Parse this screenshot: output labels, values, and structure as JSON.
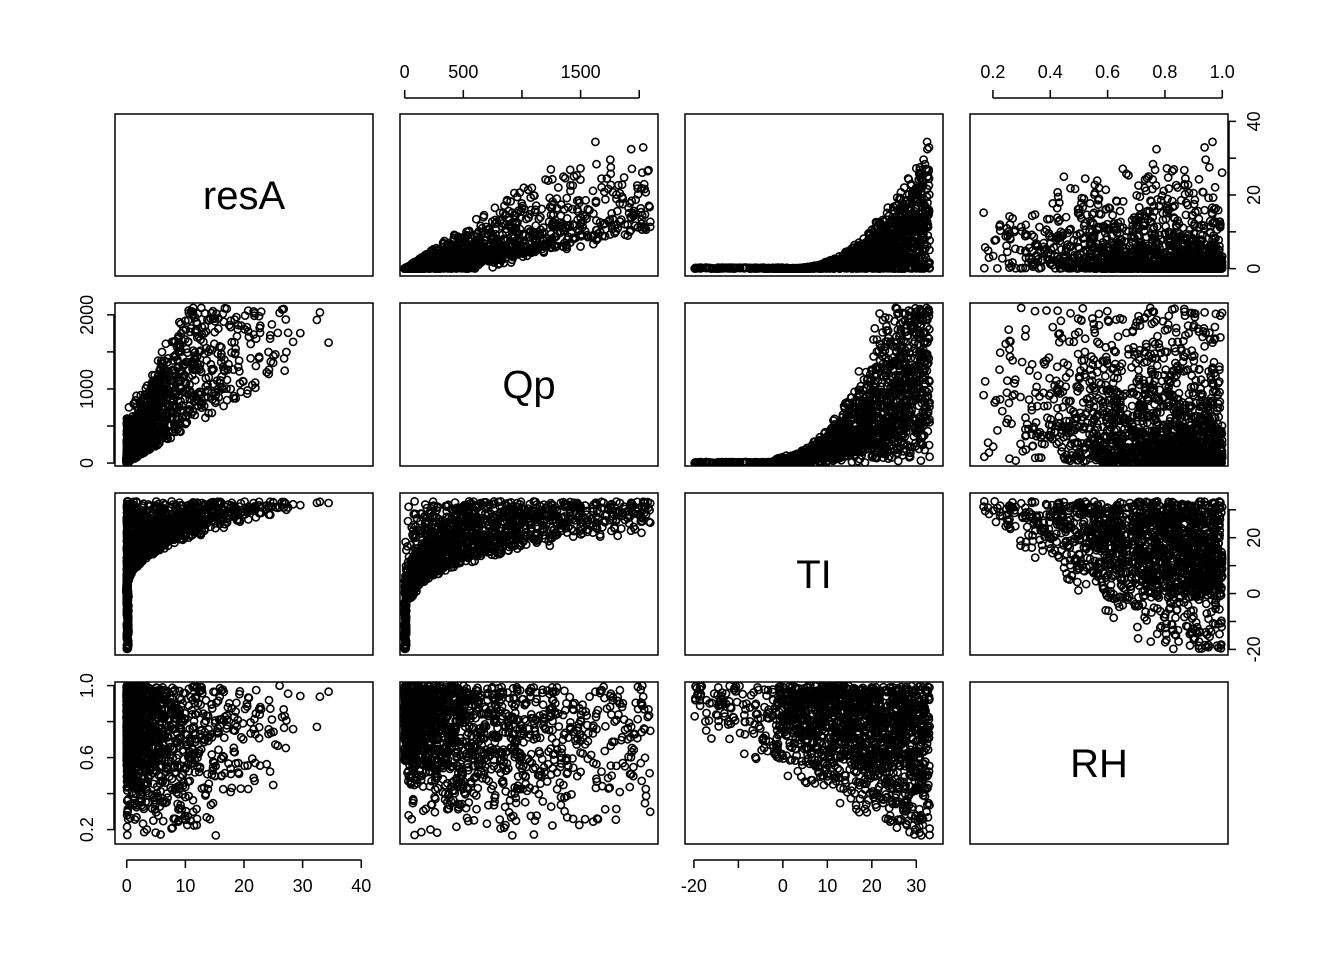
{
  "chart_data": {
    "type": "scatter",
    "title": "",
    "variables": [
      {
        "name": "resA",
        "range": [
          -2,
          42
        ],
        "ticks": [
          0,
          10,
          20,
          30,
          40
        ],
        "tick_labels": [
          "0",
          "10",
          "20",
          "30",
          "40"
        ]
      },
      {
        "name": "Qp",
        "range": [
          -40,
          2160
        ],
        "ticks": [
          0,
          500,
          1000,
          1500,
          2000
        ],
        "tick_labels": [
          "0",
          "500",
          "",
          "1500",
          ""
        ]
      },
      {
        "name": "TI",
        "range": [
          -22,
          36
        ],
        "ticks": [
          -20,
          -10,
          0,
          10,
          20,
          30
        ],
        "tick_labels": [
          "-20",
          "",
          "0",
          "10",
          "20",
          "30"
        ]
      },
      {
        "name": "RH",
        "range": [
          0.12,
          1.02
        ],
        "ticks": [
          0.2,
          0.4,
          0.6,
          0.8,
          1.0
        ],
        "tick_labels": [
          "0.2",
          "0.4",
          "0.6",
          "0.8",
          "1.0"
        ]
      }
    ],
    "left_axis_ticks": {
      "Qp": {
        "ticks": [
          0,
          500,
          1000,
          1500,
          2000
        ],
        "tick_labels": [
          "0",
          "",
          "1000",
          "",
          "2000"
        ]
      },
      "RH": {
        "ticks": [
          0.2,
          0.4,
          0.6,
          0.8,
          1.0
        ],
        "tick_labels": [
          "0.2",
          "",
          "0.6",
          "",
          "1.0"
        ]
      }
    },
    "right_axis_ticks": {
      "resA": {
        "ticks": [
          0,
          10,
          20,
          30,
          40
        ],
        "tick_labels": [
          "0",
          "",
          "20",
          "",
          "40"
        ]
      },
      "TI": {
        "ticks": [
          -20,
          -10,
          0,
          10,
          20,
          30
        ],
        "tick_labels": [
          "-20",
          "",
          "0",
          "",
          "20",
          ""
        ]
      }
    },
    "marker": "open-circle",
    "color": "#000000",
    "n_points_per_panel": 1600,
    "relationships": {
      "Qp_vs_resA": "Qp rises with resA; lower boundary roughly linear from (0,0) to (40,1800); upper boundary near 2000 above resA 20",
      "resA_vs_TI": "resA near 0 for TI below about 0, increasing steeply to about 40 at TI 33",
      "TI_vs_RH": "TI ranges -20 to 33; upper bound increases with RH",
      "RH_vs_TI": "RH between 0.15 and 1.0; lower bound rises with TI"
    }
  }
}
